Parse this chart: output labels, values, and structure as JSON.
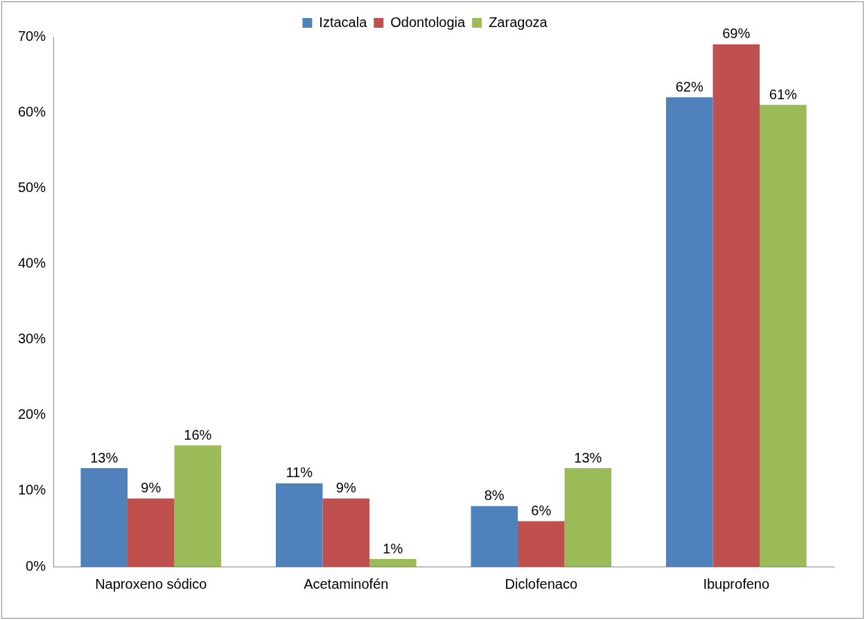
{
  "chart_data": {
    "type": "bar",
    "categories": [
      "Naproxeno sódico",
      "Acetaminofén",
      "Diclofenaco",
      "Ibuprofeno"
    ],
    "series": [
      {
        "name": "Iztacala",
        "color": "#4f81bd",
        "values": [
          13,
          11,
          8,
          62
        ],
        "value_labels": [
          "13%",
          "11%",
          "8%",
          "62%"
        ]
      },
      {
        "name": "Odontologia",
        "color": "#c0504d",
        "values": [
          9,
          9,
          6,
          69
        ],
        "value_labels": [
          "9%",
          "9%",
          "6%",
          "69%"
        ]
      },
      {
        "name": "Zaragoza",
        "color": "#9bbb59",
        "values": [
          16,
          1,
          13,
          61
        ],
        "value_labels": [
          "16%",
          "1%",
          "13%",
          "61%"
        ]
      }
    ],
    "ylim": [
      0,
      70
    ],
    "yticks": [
      {
        "value": 0,
        "label": "0%"
      },
      {
        "value": 10,
        "label": "10%"
      },
      {
        "value": 20,
        "label": "20%"
      },
      {
        "value": 30,
        "label": "30%"
      },
      {
        "value": 40,
        "label": "40%"
      },
      {
        "value": 50,
        "label": "50%"
      },
      {
        "value": 60,
        "label": "60%"
      },
      {
        "value": 70,
        "label": "70%"
      }
    ],
    "grid": false,
    "legend": "top"
  }
}
